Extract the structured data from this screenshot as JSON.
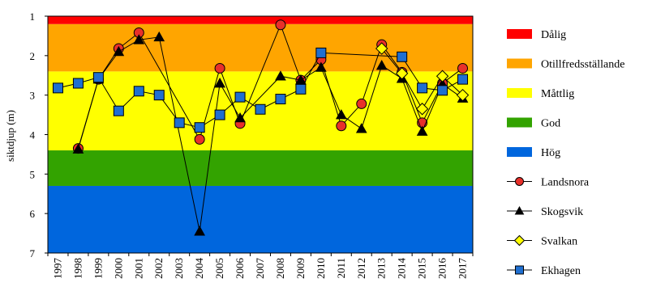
{
  "chart_data": {
    "type": "line",
    "ylabel": "siktdjup (m)",
    "y_reversed": true,
    "ylim": [
      1,
      7
    ],
    "yticks": [
      "1",
      "2",
      "3",
      "4",
      "5",
      "6",
      "7"
    ],
    "categories": [
      "1997",
      "1998",
      "1999",
      "2000",
      "2001",
      "2002",
      "2003",
      "2004",
      "2005",
      "2006",
      "2007",
      "2008",
      "2009",
      "2010",
      "2011",
      "2012",
      "2013",
      "2014",
      "2015",
      "2016",
      "2017"
    ],
    "bands": [
      {
        "name": "Hög",
        "from": 5.3,
        "to": 7,
        "color": "#0066dd"
      },
      {
        "name": "God",
        "from": 4.4,
        "to": 5.3,
        "color": "#33a300"
      },
      {
        "name": "Måttlig",
        "from": 2.4,
        "to": 4.4,
        "color": "#ffff00"
      },
      {
        "name": "Otillfredsställande",
        "from": 1.2,
        "to": 2.4,
        "color": "#ffa500"
      },
      {
        "name": "Dålig",
        "from": 1,
        "to": 1.2,
        "color": "#ff0000"
      }
    ],
    "series": [
      {
        "name": "Landsnora",
        "marker": "circle",
        "color": "#e8302a",
        "values": [
          null,
          4.35,
          2.6,
          1.82,
          1.42,
          null,
          null,
          4.12,
          2.32,
          3.72,
          null,
          1.22,
          2.62,
          2.1,
          3.78,
          3.22,
          1.72,
          2.42,
          3.7,
          2.7,
          2.32
        ]
      },
      {
        "name": "Skogsvik",
        "marker": "triangle",
        "color": "#000000",
        "values": [
          null,
          4.37,
          2.6,
          1.9,
          1.6,
          1.53,
          null,
          6.45,
          2.7,
          3.58,
          null,
          2.52,
          2.62,
          2.3,
          3.5,
          3.85,
          2.25,
          2.58,
          3.92,
          2.72,
          3.08
        ]
      },
      {
        "name": "Svalkan",
        "marker": "diamond",
        "color": "#ffff00",
        "values": [
          null,
          null,
          null,
          null,
          null,
          null,
          null,
          null,
          null,
          null,
          null,
          null,
          null,
          null,
          null,
          null,
          1.82,
          2.45,
          3.35,
          2.52,
          3.0
        ]
      },
      {
        "name": "Ekhagen",
        "marker": "square",
        "color": "#1f6fd1",
        "values": [
          2.82,
          2.7,
          2.55,
          3.4,
          2.9,
          3.0,
          3.7,
          3.82,
          3.5,
          3.05,
          3.36,
          3.1,
          2.85,
          1.93,
          null,
          null,
          null,
          2.03,
          2.82,
          2.88,
          2.6
        ]
      }
    ]
  }
}
